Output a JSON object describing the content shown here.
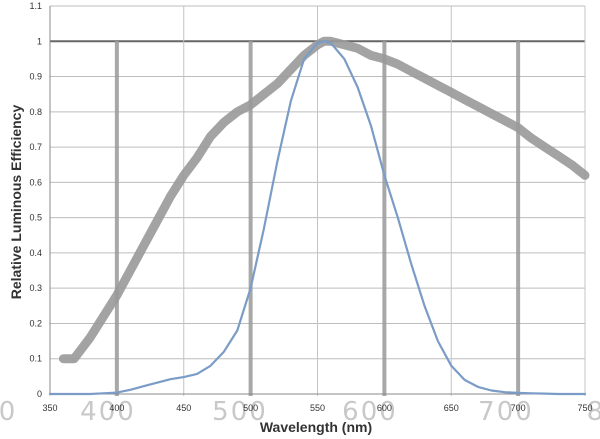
{
  "chart_data": {
    "type": "line",
    "title": "",
    "xlabel": "Wavelength (nm)",
    "ylabel": "Relative Luminous Efficiency",
    "xlim": [
      350,
      750
    ],
    "ylim": [
      0,
      1.1
    ],
    "x_ticks": [
      "350",
      "400",
      "450",
      "500",
      "550",
      "600",
      "650",
      "700",
      "750"
    ],
    "y_ticks": [
      "0",
      "0.1",
      "0.2",
      "0.3",
      "0.4",
      "0.5",
      "0.6",
      "0.7",
      "0.8",
      "0.9",
      "1",
      "1.1"
    ],
    "background_scale_labels": [
      "0",
      "400",
      "500",
      "600",
      "700",
      "8"
    ],
    "grid": true,
    "series": [
      {
        "color": "#7a9cc6",
        "x": [
          350,
          380,
          390,
          400,
          410,
          420,
          430,
          440,
          450,
          460,
          470,
          480,
          490,
          500,
          510,
          520,
          530,
          540,
          550,
          555,
          560,
          570,
          580,
          590,
          600,
          610,
          620,
          630,
          640,
          650,
          660,
          670,
          680,
          690,
          700,
          710,
          720,
          730,
          740,
          750
        ],
        "y": [
          0,
          0,
          0.002,
          0.004,
          0.012,
          0.022,
          0.032,
          0.042,
          0.048,
          0.057,
          0.08,
          0.12,
          0.18,
          0.3,
          0.47,
          0.66,
          0.83,
          0.95,
          0.995,
          1.0,
          0.995,
          0.95,
          0.87,
          0.76,
          0.62,
          0.5,
          0.37,
          0.25,
          0.15,
          0.08,
          0.04,
          0.02,
          0.01,
          0.005,
          0.003,
          0.002,
          0.001,
          0,
          0,
          0
        ]
      },
      {
        "color": "#999999",
        "x": [
          360,
          368,
          380,
          390,
          400,
          410,
          420,
          430,
          440,
          450,
          460,
          470,
          480,
          490,
          500,
          510,
          520,
          530,
          540,
          550,
          555,
          560,
          570,
          580,
          590,
          600,
          610,
          620,
          630,
          640,
          650,
          660,
          670,
          680,
          690,
          700,
          710,
          720,
          730,
          740,
          750
        ],
        "y": [
          0.1,
          0.1,
          0.16,
          0.22,
          0.28,
          0.35,
          0.42,
          0.49,
          0.56,
          0.62,
          0.67,
          0.73,
          0.77,
          0.8,
          0.82,
          0.85,
          0.88,
          0.92,
          0.96,
          0.99,
          1.0,
          1.0,
          0.99,
          0.98,
          0.96,
          0.95,
          0.935,
          0.915,
          0.895,
          0.875,
          0.855,
          0.835,
          0.815,
          0.795,
          0.775,
          0.755,
          0.725,
          0.7,
          0.675,
          0.65,
          0.62
        ]
      }
    ]
  }
}
